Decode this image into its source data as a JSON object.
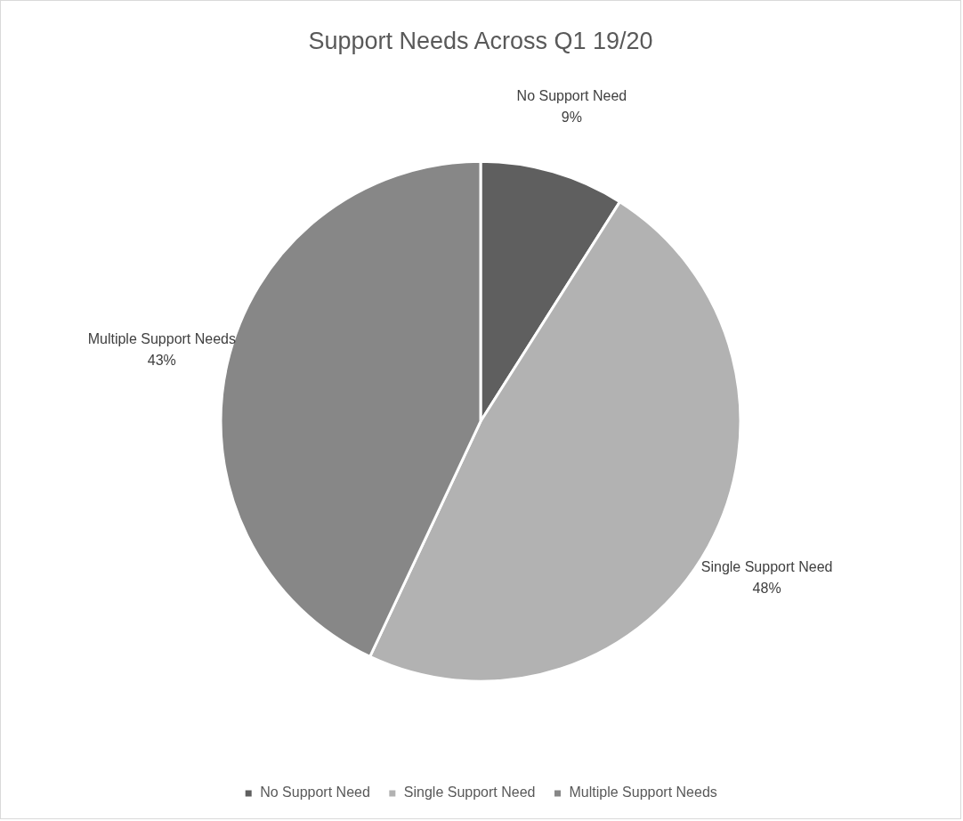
{
  "chart_data": {
    "type": "pie",
    "title": "Support Needs Across Q1 19/20",
    "categories": [
      "No Support Need",
      "Single Support Need",
      "Multiple Support Needs"
    ],
    "values": [
      9,
      48,
      43
    ],
    "colors": [
      "#5f5f5f",
      "#b2b2b2",
      "#878787"
    ],
    "value_labels": [
      "9%",
      "48%",
      "43%"
    ],
    "legend": "bottom"
  }
}
